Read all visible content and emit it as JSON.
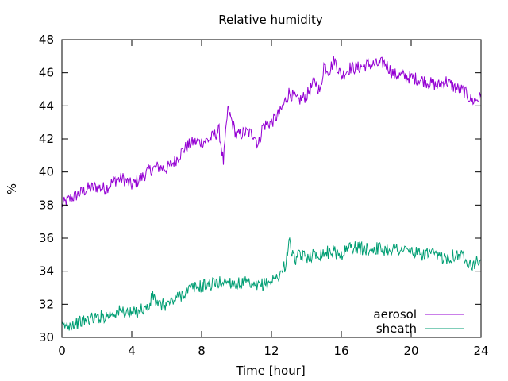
{
  "chart_data": {
    "type": "line",
    "title": "Relative humidity",
    "xlabel": "Time [hour]",
    "ylabel": "%",
    "xlim": [
      0,
      24
    ],
    "ylim": [
      30,
      48
    ],
    "xticks": [
      0,
      4,
      8,
      12,
      16,
      20,
      24
    ],
    "yticks": [
      30,
      32,
      34,
      36,
      38,
      40,
      42,
      44,
      46,
      48
    ],
    "grid": false,
    "legend_position": "bottom-right",
    "series": [
      {
        "name": "aerosol",
        "color": "#9400d3",
        "x": [
          0,
          0.5,
          1,
          1.5,
          2,
          2.5,
          3,
          3.5,
          4,
          4.5,
          5,
          5.5,
          6,
          6.5,
          7,
          7.5,
          8,
          8.5,
          9,
          9.25,
          9.5,
          10,
          10.5,
          11,
          11.25,
          11.5,
          12,
          12.5,
          13,
          13.5,
          14,
          14.5,
          14.8,
          15,
          15.3,
          15.6,
          16,
          16.5,
          17,
          17.5,
          18,
          18.5,
          19,
          19.5,
          20,
          20.5,
          21,
          21.5,
          22,
          22.5,
          23,
          23.5,
          24
        ],
        "y": [
          38.0,
          38.4,
          38.7,
          39.0,
          39.1,
          39.0,
          39.5,
          39.6,
          39.2,
          39.6,
          40.1,
          40.3,
          40.2,
          40.7,
          41.4,
          41.8,
          41.8,
          42.0,
          42.5,
          40.6,
          43.8,
          42.2,
          42.4,
          42.3,
          41.6,
          42.8,
          43.0,
          43.6,
          44.8,
          44.3,
          44.6,
          45.5,
          44.8,
          46.5,
          46.1,
          46.8,
          45.8,
          46.3,
          46.3,
          46.5,
          46.5,
          46.6,
          45.9,
          45.8,
          45.7,
          45.6,
          45.4,
          45.2,
          45.5,
          45.1,
          44.9,
          44.3,
          44.5
        ]
      },
      {
        "name": "sheath",
        "color": "#009e73",
        "x": [
          0,
          0.5,
          1,
          1.5,
          2,
          2.5,
          3,
          3.5,
          4,
          4.5,
          5,
          5.2,
          5.5,
          6,
          6.5,
          7,
          7.5,
          8,
          8.5,
          9,
          9.5,
          10,
          10.5,
          11,
          11.5,
          12,
          12.5,
          12.8,
          13,
          13.3,
          13.6,
          14,
          14.5,
          15,
          15.5,
          16,
          16.5,
          17,
          17.5,
          18,
          18.5,
          19,
          19.5,
          20,
          20.5,
          21,
          21.5,
          22,
          22.5,
          23,
          23.5,
          24
        ],
        "y": [
          30.6,
          30.8,
          30.9,
          31.1,
          31.2,
          31.3,
          31.5,
          31.6,
          31.4,
          31.7,
          31.8,
          32.6,
          31.9,
          32.0,
          32.3,
          32.7,
          33.0,
          33.1,
          33.2,
          33.3,
          33.4,
          33.2,
          33.3,
          33.0,
          33.2,
          33.4,
          33.8,
          34.4,
          35.8,
          34.7,
          34.9,
          34.9,
          35.0,
          35.1,
          35.2,
          35.0,
          35.5,
          35.4,
          35.3,
          35.4,
          35.3,
          35.4,
          35.3,
          35.2,
          35.0,
          35.1,
          34.9,
          34.8,
          35.0,
          34.9,
          34.4,
          34.7
        ]
      }
    ]
  }
}
